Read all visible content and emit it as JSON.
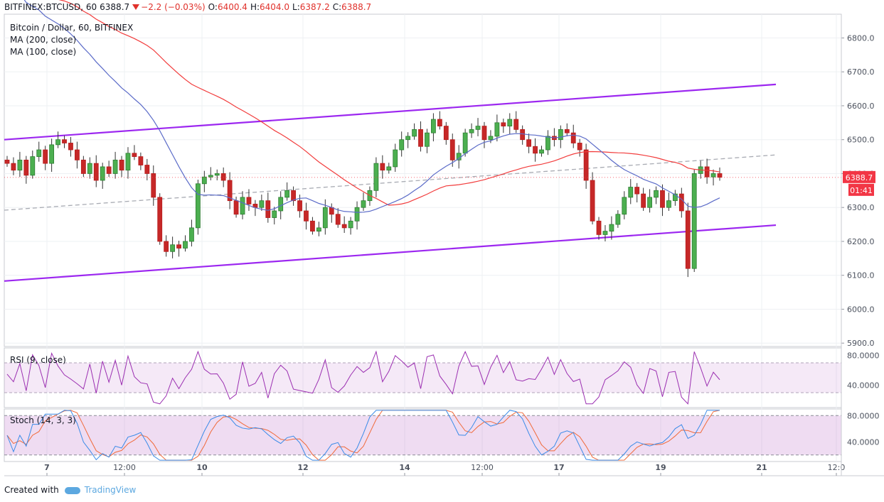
{
  "header": {
    "symbol": "BITFINEX:BTCUSD, 60",
    "last": "6388.7",
    "change": "−2.2 (−0.03%)",
    "o_label": "O:",
    "o_val": "6400.4",
    "h_label": "H:",
    "h_val": "6404.0",
    "l_label": "L:",
    "l_val": "6387.2",
    "c_label": "C:",
    "c_val": "6388.7"
  },
  "legend": {
    "title": "Bitcoin / Dollar, 60, BITFINEX",
    "ma200": "MA (200, close)",
    "ma100": "MA (100, close)"
  },
  "rsi_label": "RSI (9, close)",
  "stoch_label": "Stoch (14, 3, 3)",
  "price_tag": "6388.7",
  "timer_tag": "01:41",
  "footer": {
    "created_with": "Created with",
    "brand": "TradingView"
  },
  "colors": {
    "up": "#26a69a",
    "down": "#ef5350",
    "channel": "#9c27f0",
    "ma200": "#f23c3c",
    "ma100": "#5b6bc8",
    "rsi": "#9b2fb1",
    "stoch_k": "#3a8be8",
    "stoch_d": "#f06a3a",
    "tag": "#f23645"
  },
  "chart_data": {
    "type": "candlestick",
    "y_ticks": [
      "6800.0",
      "6700.0",
      "6600.0",
      "6500.0",
      "6400.0",
      "6300.0",
      "6200.0",
      "6100.0",
      "6000.0",
      "5900.0"
    ],
    "x_ticks": [
      "7",
      "12:00",
      "10",
      "12",
      "14",
      "12:00",
      "17",
      "19",
      "21",
      "12:0"
    ],
    "ylim": [
      5890,
      6870
    ],
    "channel": {
      "upper": [
        [
          0,
          6500
        ],
        [
          1085,
          6663
        ]
      ],
      "lower": [
        [
          0,
          6083
        ],
        [
          1085,
          6248
        ]
      ],
      "midline": [
        [
          0,
          6292
        ],
        [
          1085,
          6455
        ]
      ]
    },
    "candles_close": [
      6430,
      6410,
      6440,
      6395,
      6450,
      6470,
      6430,
      6485,
      6500,
      6490,
      6470,
      6440,
      6400,
      6430,
      6380,
      6420,
      6400,
      6440,
      6410,
      6460,
      6450,
      6425,
      6400,
      6330,
      6200,
      6170,
      6190,
      6180,
      6200,
      6240,
      6370,
      6390,
      6395,
      6400,
      6380,
      6320,
      6280,
      6330,
      6310,
      6300,
      6320,
      6270,
      6290,
      6330,
      6350,
      6320,
      6290,
      6260,
      6230,
      6240,
      6300,
      6280,
      6250,
      6240,
      6260,
      6300,
      6320,
      6350,
      6430,
      6410,
      6420,
      6470,
      6500,
      6510,
      6530,
      6480,
      6520,
      6560,
      6540,
      6500,
      6440,
      6460,
      6520,
      6530,
      6540,
      6500,
      6510,
      6550,
      6540,
      6560,
      6530,
      6500,
      6480,
      6460,
      6470,
      6510,
      6500,
      6530,
      6520,
      6490,
      6470,
      6380,
      6260,
      6220,
      6230,
      6250,
      6280,
      6330,
      6360,
      6340,
      6300,
      6330,
      6350,
      6300,
      6320,
      6340,
      6290,
      6120,
      6400,
      6420,
      6390,
      6400,
      6389
    ],
    "series": [
      {
        "name": "MA (200, close)"
      },
      {
        "name": "MA (100, close)"
      }
    ],
    "rsi": {
      "ylim": [
        10,
        90
      ],
      "ticks": [
        "80.0000",
        "40.0000"
      ],
      "band": [
        70,
        30
      ]
    },
    "stoch": {
      "ylim": [
        10,
        90
      ],
      "ticks": [
        "80.0000",
        "40.0000"
      ],
      "band": [
        80,
        20
      ]
    }
  }
}
